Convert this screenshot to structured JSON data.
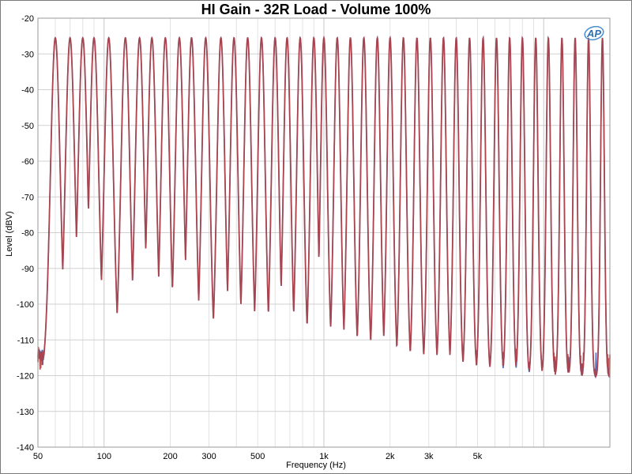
{
  "chart_data": {
    "type": "line",
    "title": "HI Gain - 32R Load - Volume 100%",
    "xlabel": "Frequency (Hz)",
    "ylabel": "Level (dBV)",
    "xscale": "log",
    "xlim": [
      50,
      20000
    ],
    "ylim": [
      -140,
      -20
    ],
    "x_ticks": [
      50,
      100,
      200,
      300,
      500,
      1000,
      2000,
      3000,
      5000
    ],
    "x_tick_labels": [
      "50",
      "100",
      "200",
      "300",
      "500",
      "1k",
      "2k",
      "3k",
      "5k"
    ],
    "y_ticks": [
      -20,
      -30,
      -40,
      -50,
      -60,
      -70,
      -80,
      -90,
      -100,
      -110,
      -120,
      -130,
      -140
    ],
    "grid": true,
    "logo": "AP",
    "tone_peak_level": -25.5,
    "tone_frequencies": [
      60,
      70,
      80,
      90,
      105,
      125,
      145,
      165,
      190,
      220,
      250,
      290,
      340,
      390,
      450,
      520,
      600,
      680,
      780,
      900,
      1000,
      1150,
      1320,
      1520,
      1750,
      2000,
      2300,
      2650,
      3050,
      3500,
      4000,
      4600,
      5300,
      6100,
      7000,
      8000,
      9200,
      10500,
      12100,
      13900,
      16000,
      18500
    ],
    "noise_floor": {
      "start_level": -114,
      "end_level": -120,
      "spread_low": 12,
      "spread_high": 8
    },
    "series": [
      {
        "color": "#3a63b8"
      },
      {
        "color": "#b73c3c"
      }
    ]
  }
}
